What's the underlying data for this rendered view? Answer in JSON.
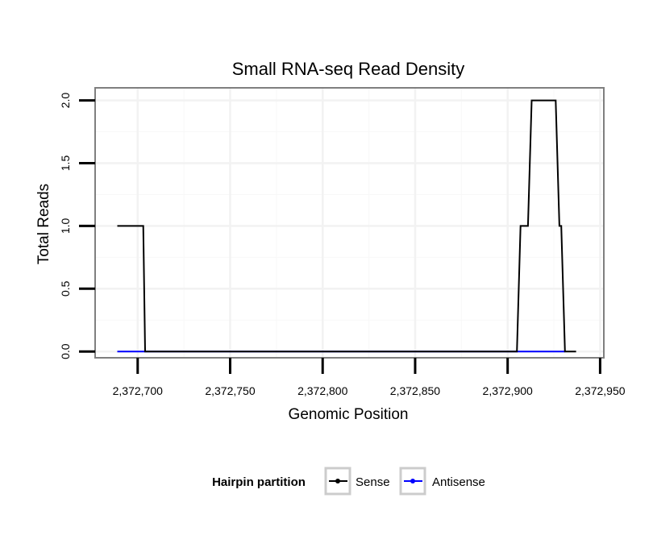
{
  "chart_data": {
    "type": "line",
    "title": "Small RNA-seq Read Density",
    "xlabel": "Genomic Position",
    "ylabel": "Total Reads",
    "xlim": [
      2372677,
      2372952
    ],
    "ylim": [
      -0.05,
      2.1
    ],
    "x_ticks": [
      2372700,
      2372750,
      2372800,
      2372850,
      2372900,
      2372950
    ],
    "x_tick_labels": [
      "2,372,700",
      "2,372,750",
      "2,372,800",
      "2,372,850",
      "2,372,900",
      "2,372,950"
    ],
    "y_ticks": [
      0.0,
      0.5,
      1.0,
      1.5,
      2.0
    ],
    "y_tick_labels": [
      "0.0",
      "0.5",
      "1.0",
      "1.5",
      "2.0"
    ],
    "grid": true,
    "legend_position": "bottom",
    "legend_title": "Hairpin partition",
    "series": [
      {
        "name": "Sense",
        "color": "#000000",
        "x": [
          2372689,
          2372703,
          2372704,
          2372905,
          2372907,
          2372911,
          2372913,
          2372926,
          2372928,
          2372929,
          2372931,
          2372937
        ],
        "y": [
          1,
          1,
          0,
          0,
          1,
          1,
          2,
          2,
          1,
          1,
          0,
          0
        ]
      },
      {
        "name": "Antisense",
        "color": "#0000ff",
        "x": [
          2372689,
          2372931
        ],
        "y": [
          0,
          0
        ]
      }
    ]
  }
}
